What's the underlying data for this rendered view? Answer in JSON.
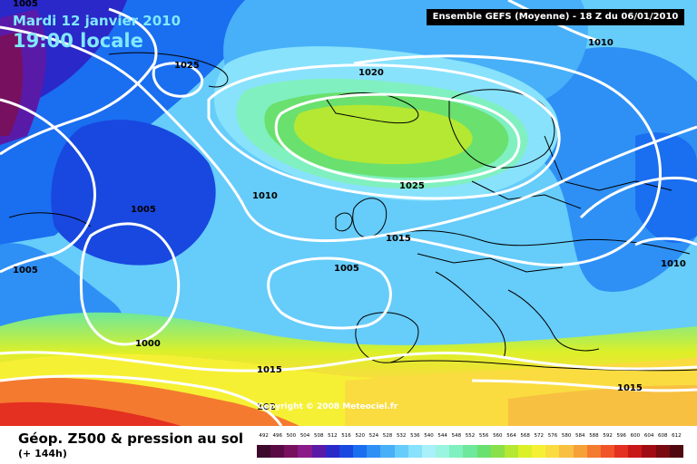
{
  "header": {
    "date": "Mardi 12 janvier 2010",
    "time": "19:00 locale",
    "run_info": "Ensemble GEFS (Moyenne)  - 18 Z du 06/01/2010"
  },
  "footer": {
    "title": "Géop. Z500 & pression au sol",
    "lead_time": "(+ 144h)",
    "copyright": "Copyright © 2008 Meteociel.fr"
  },
  "isobar_labels": [
    {
      "id": "1005-top-left",
      "text": "1005"
    },
    {
      "id": "1025-west",
      "text": "1025"
    },
    {
      "id": "1020",
      "text": "1020"
    },
    {
      "id": "1010-top-right",
      "text": "1010"
    },
    {
      "id": "1010-mid",
      "text": "1010"
    },
    {
      "id": "1025-center",
      "text": "1025"
    },
    {
      "id": "1005-west",
      "text": "1005"
    },
    {
      "id": "1015-center",
      "text": "1015"
    },
    {
      "id": "1005-left-edge",
      "text": "1005"
    },
    {
      "id": "1005-center",
      "text": "1005"
    },
    {
      "id": "1010-east",
      "text": "1010"
    },
    {
      "id": "1000",
      "text": "1000"
    },
    {
      "id": "1015-south",
      "text": "1015"
    },
    {
      "id": "1015-southeast",
      "text": "1015"
    },
    {
      "id": "102-bottom",
      "text": "102"
    }
  ],
  "legend": {
    "labels": [
      "492",
      "496",
      "500",
      "504",
      "508",
      "512",
      "516",
      "520",
      "524",
      "528",
      "532",
      "536",
      "540",
      "544",
      "548",
      "552",
      "556",
      "560",
      "564",
      "568",
      "572",
      "576",
      "580",
      "584",
      "588",
      "592",
      "596",
      "600",
      "604",
      "608",
      "612"
    ],
    "colors": [
      "#3d0a2e",
      "#5a0a45",
      "#781060",
      "#8a1a8a",
      "#5a1aa8",
      "#2a28c8",
      "#1848e0",
      "#1a6ef0",
      "#2e90f5",
      "#48b0f8",
      "#66ccfa",
      "#88e2fc",
      "#a8f0fa",
      "#9af5e0",
      "#80f0c0",
      "#6ee89a",
      "#6ae06e",
      "#8ae04a",
      "#b4e832",
      "#dcf028",
      "#f6f034",
      "#fadc40",
      "#f8c040",
      "#f6a038",
      "#f47a30",
      "#f05428",
      "#e43020",
      "#c81818",
      "#a00c14",
      "#780a10",
      "#500810"
    ]
  }
}
